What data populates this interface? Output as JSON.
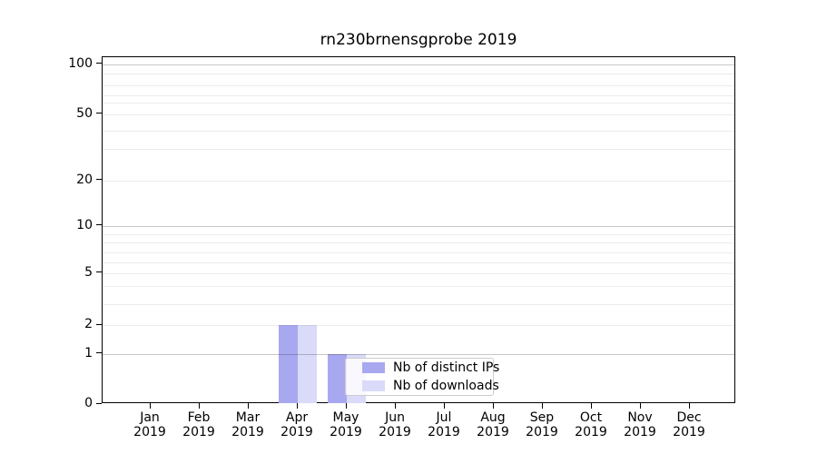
{
  "chart_data": {
    "type": "bar",
    "title": "rn230brnensgprobe 2019",
    "categories": [
      "Jan 2019",
      "Feb 2019",
      "Mar 2019",
      "Apr 2019",
      "May 2019",
      "Jun 2019",
      "Jul 2019",
      "Aug 2019",
      "Sep 2019",
      "Oct 2019",
      "Nov 2019",
      "Dec 2019"
    ],
    "series": [
      {
        "name": "Nb of distinct IPs",
        "color": "#a8a8f0",
        "values": [
          0,
          0,
          0,
          2,
          1,
          0,
          0,
          0,
          0,
          0,
          0,
          0
        ]
      },
      {
        "name": "Nb of downloads",
        "color": "#dadaf9",
        "values": [
          0,
          0,
          0,
          2,
          1,
          0,
          0,
          0,
          0,
          0,
          0,
          0
        ]
      }
    ],
    "xlabel": "",
    "ylabel": "",
    "yscale": "symlog",
    "y_tick_labels": [
      "0",
      "1",
      "2",
      "5",
      "10",
      "20",
      "50",
      "100"
    ],
    "ylim": [
      0,
      110
    ],
    "grid": true,
    "legend_position": "inside lower center"
  },
  "colors": {
    "bar_distinct_ips": "#a8a8f0",
    "bar_downloads": "#dadaf9",
    "major_gridline": "#c7c7c7",
    "minor_gridline": "#ececec",
    "axis": "#000000",
    "legend_border": "#cccccc",
    "background": "#ffffff",
    "text": "#000000"
  }
}
